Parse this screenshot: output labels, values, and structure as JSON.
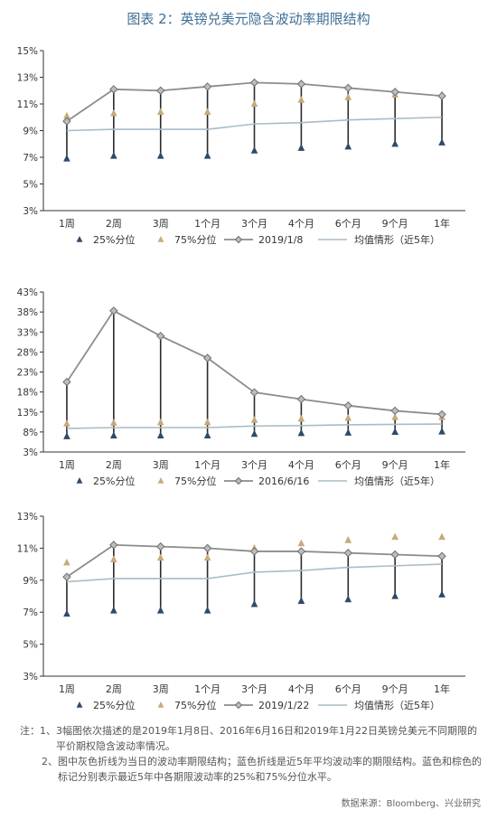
{
  "title": "图表 2：英镑兑美元隐含波动率期限结构",
  "notes": {
    "prefix": "注：",
    "items": [
      {
        "num": "1、",
        "text": "3幅图依次描述的是2019年1月8日、2016年6月16日和2019年1月22日英镑兑美元不同期限的平价期权隐含波动率情况。"
      },
      {
        "num": "2、",
        "text": "图中灰色折线为当日的波动率期限结构；蓝色折线是近5年平均波动率的期限结构。蓝色和棕色的标记分别表示最近5年中各期限波动率的25%和75%分位水平。"
      }
    ]
  },
  "source": "数据来源：Bloomberg、兴业研究",
  "colors": {
    "blue_marker": "#2d4a6b",
    "tan_marker": "#c8a97a",
    "gray_line": "#8c8c8c",
    "avg_line": "#a9bcc6",
    "axis": "#333333"
  },
  "chart_data": [
    {
      "type": "line",
      "categories": [
        "1周",
        "2周",
        "3周",
        "1个月",
        "3个月",
        "4个月",
        "6个月",
        "9个月",
        "1年"
      ],
      "yticks": [
        "3%",
        "5%",
        "7%",
        "9%",
        "11%",
        "13%",
        "15%"
      ],
      "ylim": [
        3,
        15
      ],
      "series": [
        {
          "name": "25%分位",
          "values": [
            6.9,
            7.1,
            7.1,
            7.1,
            7.5,
            7.7,
            7.8,
            8.0,
            8.1
          ]
        },
        {
          "name": "75%分位",
          "values": [
            10.1,
            10.3,
            10.4,
            10.4,
            11.0,
            11.3,
            11.5,
            11.7,
            11.7
          ]
        },
        {
          "name": "2019/1/8",
          "values": [
            9.7,
            12.1,
            12.0,
            12.3,
            12.6,
            12.5,
            12.2,
            11.9,
            11.6
          ]
        },
        {
          "name": "均值情形（近5年）",
          "values": [
            9.0,
            9.1,
            9.1,
            9.1,
            9.5,
            9.6,
            9.8,
            9.9,
            10.0
          ]
        }
      ]
    },
    {
      "type": "line",
      "categories": [
        "1周",
        "2周",
        "3周",
        "1个月",
        "3个月",
        "4个月",
        "6个月",
        "9个月",
        "1年"
      ],
      "yticks": [
        "3%",
        "8%",
        "13%",
        "18%",
        "23%",
        "28%",
        "33%",
        "38%",
        "43%"
      ],
      "ylim": [
        3,
        43
      ],
      "series": [
        {
          "name": "25%分位",
          "values": [
            6.9,
            7.1,
            7.1,
            7.1,
            7.5,
            7.7,
            7.8,
            8.0,
            8.1
          ]
        },
        {
          "name": "75%分位",
          "values": [
            10.1,
            10.3,
            10.4,
            10.4,
            11.0,
            11.3,
            11.5,
            11.7,
            11.7
          ]
        },
        {
          "name": "2016/6/16",
          "values": [
            20.5,
            38.3,
            32.0,
            26.5,
            17.9,
            16.2,
            14.6,
            13.3,
            12.4
          ]
        },
        {
          "name": "均值情形（近5年）",
          "values": [
            8.9,
            9.1,
            9.1,
            9.1,
            9.5,
            9.6,
            9.8,
            9.9,
            10.0
          ]
        }
      ]
    },
    {
      "type": "line",
      "categories": [
        "1周",
        "2周",
        "3周",
        "1个月",
        "3个月",
        "4个月",
        "6个月",
        "9个月",
        "1年"
      ],
      "yticks": [
        "3%",
        "5%",
        "7%",
        "9%",
        "11%",
        "13%"
      ],
      "ylim": [
        3,
        13
      ],
      "series": [
        {
          "name": "25%分位",
          "values": [
            6.9,
            7.1,
            7.1,
            7.1,
            7.5,
            7.7,
            7.8,
            8.0,
            8.1
          ]
        },
        {
          "name": "75%分位",
          "values": [
            10.1,
            10.3,
            10.4,
            10.4,
            11.0,
            11.3,
            11.5,
            11.7,
            11.7
          ]
        },
        {
          "name": "2019/1/22",
          "values": [
            9.2,
            11.2,
            11.1,
            11.0,
            10.8,
            10.8,
            10.7,
            10.6,
            10.5
          ]
        },
        {
          "name": "均值情形（近5年）",
          "values": [
            8.9,
            9.1,
            9.1,
            9.1,
            9.5,
            9.6,
            9.8,
            9.9,
            10.0
          ]
        }
      ]
    }
  ]
}
